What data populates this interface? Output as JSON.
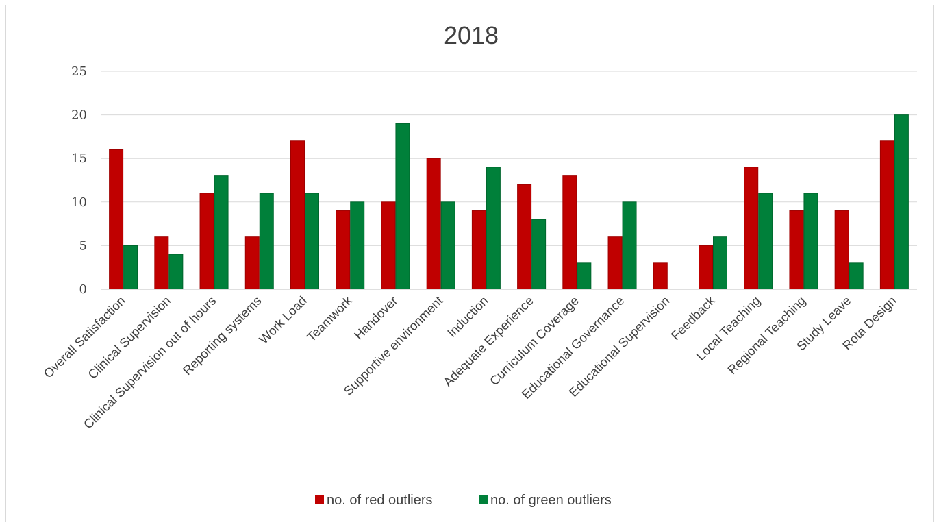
{
  "chart_data": {
    "type": "bar",
    "title": "2018",
    "xlabel": "",
    "ylabel": "",
    "ylim": [
      0,
      25
    ],
    "yticks": [
      0,
      5,
      10,
      15,
      20,
      25
    ],
    "grid": true,
    "legend_position": "bottom",
    "categories": [
      "Overall Satisfaction",
      "Clinical Supervision",
      "Clinical Supervision out of hours",
      "Reporting systems",
      "Work Load",
      "Teamwork",
      "Handover",
      "Supportive environment",
      "Induction",
      "Adequate Experience",
      "Curriculum Coverage",
      "Educational Governance",
      "Educational Supervision",
      "Feedback",
      "Local Teaching",
      "Regional Teaching",
      "Study Leave",
      "Rota Design"
    ],
    "series": [
      {
        "name": "no. of red outliers",
        "color": "#c00000",
        "values": [
          16,
          6,
          11,
          6,
          17,
          9,
          10,
          15,
          9,
          12,
          13,
          6,
          3,
          5,
          14,
          9,
          9,
          17
        ]
      },
      {
        "name": "no. of green outliers",
        "color": "#00803a",
        "values": [
          5,
          4,
          13,
          11,
          11,
          10,
          19,
          10,
          14,
          8,
          3,
          10,
          0,
          6,
          11,
          11,
          3,
          20
        ]
      }
    ]
  }
}
